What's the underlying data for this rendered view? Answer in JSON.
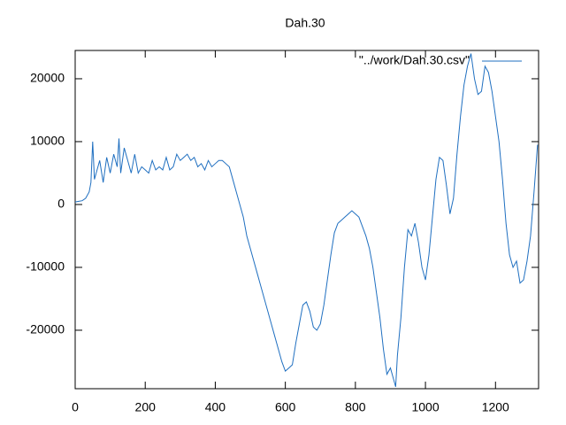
{
  "chart_data": {
    "type": "line",
    "title": "Dah.30",
    "x": [
      0,
      10,
      20,
      30,
      40,
      45,
      50,
      55,
      60,
      70,
      80,
      90,
      100,
      110,
      120,
      125,
      130,
      140,
      150,
      160,
      170,
      180,
      190,
      200,
      210,
      220,
      230,
      240,
      250,
      260,
      270,
      280,
      290,
      300,
      310,
      320,
      330,
      340,
      350,
      360,
      370,
      380,
      390,
      400,
      410,
      420,
      430,
      440,
      450,
      460,
      470,
      480,
      490,
      500,
      510,
      520,
      530,
      540,
      550,
      560,
      570,
      580,
      590,
      600,
      610,
      620,
      630,
      640,
      650,
      660,
      670,
      680,
      690,
      700,
      710,
      720,
      730,
      740,
      750,
      760,
      770,
      780,
      790,
      800,
      810,
      820,
      830,
      840,
      850,
      860,
      870,
      880,
      890,
      900,
      910,
      915,
      920,
      930,
      940,
      950,
      960,
      970,
      980,
      990,
      1000,
      1010,
      1020,
      1030,
      1040,
      1050,
      1060,
      1070,
      1080,
      1090,
      1100,
      1110,
      1120,
      1130,
      1140,
      1150,
      1160,
      1170,
      1180,
      1190,
      1200,
      1210,
      1220,
      1230,
      1240,
      1250,
      1260,
      1270,
      1280,
      1290,
      1300,
      1310,
      1320
    ],
    "series": [
      {
        "name": "\"../work/Dah.30.csv\"",
        "color": "#1f6fc0",
        "values": [
          400,
          500,
          600,
          1000,
          2000,
          3500,
          10000,
          4000,
          5000,
          7000,
          3500,
          7500,
          5000,
          8000,
          6000,
          10500,
          5000,
          9000,
          7000,
          5000,
          8000,
          5000,
          6000,
          5500,
          5000,
          7000,
          5500,
          6000,
          5500,
          7500,
          5500,
          6000,
          8000,
          7000,
          7500,
          8000,
          7000,
          7500,
          6000,
          6500,
          5500,
          7000,
          6000,
          6500,
          7000,
          7000,
          6500,
          6000,
          4000,
          2000,
          0,
          -2000,
          -5000,
          -7000,
          -9000,
          -11000,
          -13000,
          -15000,
          -17000,
          -19000,
          -21000,
          -23000,
          -25000,
          -26500,
          -26000,
          -25500,
          -22000,
          -19000,
          -16000,
          -15500,
          -17000,
          -19500,
          -20000,
          -19000,
          -16000,
          -12000,
          -8000,
          -4500,
          -3000,
          -2500,
          -2000,
          -1500,
          -1000,
          -1500,
          -2000,
          -3500,
          -5000,
          -7000,
          -10000,
          -14000,
          -18000,
          -23000,
          -27000,
          -26000,
          -28000,
          -29000,
          -24000,
          -18000,
          -10000,
          -4000,
          -5000,
          -3000,
          -6000,
          -10000,
          -12000,
          -8000,
          -2000,
          4000,
          7500,
          7000,
          3000,
          -1500,
          1000,
          8000,
          14000,
          19000,
          22000,
          24000,
          20000,
          17500,
          18000,
          22000,
          21000,
          18000,
          14000,
          10000,
          4000,
          -3000,
          -8000,
          -10000,
          -9000,
          -12500,
          -12000,
          -9000,
          -5000,
          2000,
          9500
        ]
      }
    ],
    "xlim": [
      0,
      1323
    ],
    "ylim": [
      -29300,
      24500
    ],
    "xticks": [
      0,
      200,
      400,
      600,
      800,
      1000,
      1200
    ],
    "yticks": [
      -20000,
      -10000,
      0,
      10000,
      20000
    ],
    "legend": "top-right"
  }
}
